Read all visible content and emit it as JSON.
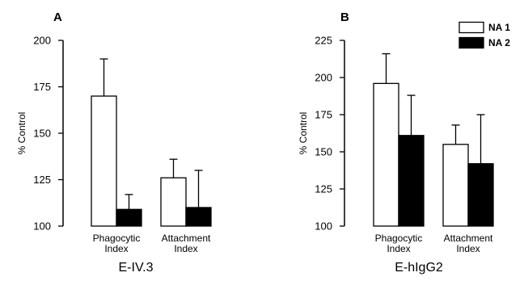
{
  "chart_data": [
    {
      "panel_label": "A",
      "type": "bar",
      "title": "",
      "xlabel": "E-IV.3",
      "ylabel": "% Control",
      "ylim": [
        100,
        200
      ],
      "yticks": [
        100,
        125,
        150,
        175,
        200
      ],
      "categories": [
        {
          "line1": "Phagocytic",
          "line2": "Index"
        },
        {
          "line1": "Attachment",
          "line2": "Index"
        }
      ],
      "series": [
        {
          "values": [
            170,
            126
          ],
          "errors": [
            20,
            10
          ],
          "fill": "#ffffff"
        },
        {
          "values": [
            109,
            110
          ],
          "errors": [
            8,
            20
          ],
          "fill": "#000000"
        }
      ],
      "legend": null
    },
    {
      "panel_label": "B",
      "type": "bar",
      "title": "",
      "xlabel": "E-hIgG2",
      "ylabel": "% Control",
      "ylim": [
        100,
        225
      ],
      "yticks": [
        100,
        125,
        150,
        175,
        200,
        225
      ],
      "categories": [
        {
          "line1": "Phagocytic",
          "line2": "Index"
        },
        {
          "line1": "Attachment",
          "line2": "Index"
        }
      ],
      "series": [
        {
          "name": "NA 1",
          "values": [
            196,
            155
          ],
          "errors": [
            20,
            13
          ],
          "fill": "#ffffff"
        },
        {
          "name": "NA 2",
          "values": [
            161,
            142
          ],
          "errors": [
            27,
            33
          ],
          "fill": "#000000"
        }
      ],
      "legend": "top-right"
    }
  ]
}
